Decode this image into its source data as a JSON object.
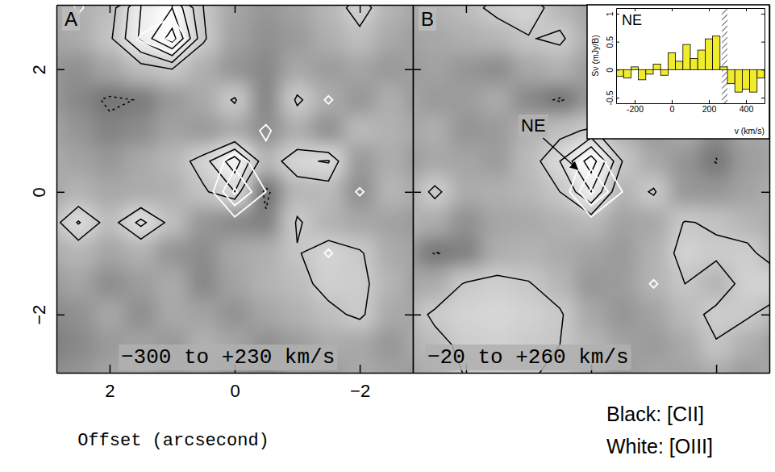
{
  "chart_data": {
    "type": "contour",
    "x_label": "Offset (arcsecond)",
    "legend": "bottom-right",
    "xlim": [
      2.85,
      -2.85
    ],
    "ylim": [
      -2.95,
      3.05
    ],
    "xticks": [
      2,
      0,
      {
        "value": -2,
        "label": "−2"
      }
    ],
    "yticks": [
      2,
      0,
      {
        "value": -2,
        "label": "−2"
      }
    ],
    "x": [
      3,
      2.5,
      2,
      1.5,
      1,
      0.5,
      0,
      -0.5,
      -1,
      -1.5,
      -2,
      -2.5,
      -3
    ],
    "y": [
      3,
      2.5,
      2,
      1.5,
      1,
      0.5,
      0,
      -0.5,
      -1,
      -1.5,
      -2,
      -2.5,
      -3
    ],
    "color_range": [
      -3,
      5
    ],
    "series": [
      {
        "name": "Black: [CII]",
        "color": "#000000",
        "levels": [
          -3,
          -2,
          2,
          3,
          4,
          5,
          6
        ]
      },
      {
        "name": "White: [OIII]",
        "color": "#ffffff",
        "levels": [
          2,
          3,
          4
        ]
      }
    ],
    "panels": [
      {
        "title": "A",
        "annotation": "−300 to +230 km/s",
        "maps": [
          [
            [
              0.5,
              0.8,
              1.5,
              4.0,
              5.0,
              2.0,
              0.3,
              -0.5,
              0.2,
              1.2,
              2.6,
              1.0,
              0.2
            ],
            [
              0.2,
              0.6,
              1.8,
              4.2,
              6.5,
              2.2,
              0.1,
              -0.8,
              -0.3,
              0.8,
              1.6,
              0.5,
              -0.2
            ],
            [
              -0.5,
              -0.8,
              0.3,
              1.5,
              2.0,
              0.8,
              -0.6,
              -1.2,
              0.4,
              -0.2,
              0.3,
              -0.4,
              0.1
            ],
            [
              -0.3,
              -1.2,
              -2.3,
              -1.9,
              -0.4,
              0.5,
              2.2,
              -1.4,
              2.3,
              0.6,
              -0.5,
              0.8,
              -0.6
            ],
            [
              0.4,
              -0.6,
              -1.5,
              -1.0,
              0.2,
              -0.3,
              0.5,
              -0.9,
              0.7,
              -0.8,
              1.4,
              0.9,
              0.3
            ],
            [
              0.6,
              0.2,
              -0.4,
              0.5,
              1.2,
              2.6,
              4.6,
              1.2,
              2.8,
              3.1,
              -0.3,
              0.7,
              -0.4
            ],
            [
              0.3,
              1.0,
              0.4,
              0.6,
              0.8,
              1.8,
              3.0,
              -2.5,
              1.2,
              1.4,
              -0.9,
              1.2,
              0.5
            ],
            [
              1.2,
              3.1,
              1.5,
              3.3,
              1.6,
              -0.5,
              -1.2,
              -1.6,
              2.2,
              1.0,
              0.4,
              0.2,
              -0.3
            ],
            [
              0.5,
              1.2,
              0.3,
              0.9,
              -0.6,
              -1.0,
              0.4,
              0.8,
              1.9,
              2.7,
              2.2,
              0.6,
              0.1
            ],
            [
              -0.4,
              0.3,
              -1.0,
              -0.2,
              0.6,
              -1.3,
              0.2,
              1.0,
              1.5,
              2.5,
              2.4,
              1.1,
              -0.2
            ],
            [
              -1.3,
              -0.8,
              0.4,
              -0.9,
              0.5,
              0.2,
              -0.7,
              0.3,
              0.9,
              1.6,
              2.3,
              0.5,
              0.3
            ],
            [
              -1.8,
              -1.2,
              -0.3,
              0.2,
              -0.4,
              0.9,
              0.3,
              -0.8,
              -0.2,
              0.6,
              0.4,
              -0.5,
              0.7
            ],
            [
              -1.0,
              -0.6,
              0.2,
              0.6,
              -0.2,
              0.3,
              -0.5,
              -0.9,
              0.1,
              -0.3,
              0.5,
              0.2,
              -0.4
            ]
          ],
          [
            [
              0,
              2.3,
              0.5,
              0.8,
              1.5,
              0.3,
              0,
              0,
              0,
              0,
              0,
              0,
              0
            ],
            [
              0,
              0.6,
              0.3,
              2.2,
              3.2,
              0.5,
              0,
              0,
              0,
              0,
              0,
              0,
              0
            ],
            [
              0,
              0,
              0,
              0,
              0.5,
              0,
              0,
              0,
              0,
              0,
              0,
              0,
              0
            ],
            [
              0,
              0,
              0,
              0,
              0,
              0,
              0,
              0.3,
              0,
              2.3,
              0,
              0,
              0
            ],
            [
              0,
              0,
              0,
              0,
              0,
              0,
              0.4,
              2.4,
              0,
              0,
              0,
              0,
              0
            ],
            [
              0,
              0,
              0,
              0,
              0,
              0.8,
              2.6,
              1.2,
              0,
              0,
              0,
              0,
              0
            ],
            [
              0,
              0,
              0,
              0,
              0,
              1.0,
              4.2,
              2.0,
              0,
              0,
              2.3,
              0,
              0
            ],
            [
              0,
              0,
              0,
              0,
              0,
              0.3,
              1.5,
              0.6,
              0,
              0,
              0,
              0,
              0
            ],
            [
              0,
              0,
              0,
              0,
              0,
              0,
              0,
              0,
              0,
              2.3,
              0,
              0,
              0
            ],
            [
              0,
              0,
              0,
              0,
              0,
              0,
              0,
              0,
              0,
              0,
              0,
              0,
              0
            ],
            [
              0,
              0,
              0,
              0,
              0,
              0,
              0,
              0,
              0,
              0,
              0,
              0,
              0
            ],
            [
              0,
              0,
              0,
              0,
              0,
              0,
              0,
              0,
              0,
              0,
              0,
              0,
              0
            ],
            [
              0,
              0,
              0,
              0,
              0,
              0,
              0,
              0,
              0,
              0,
              0,
              0,
              0
            ]
          ]
        ]
      },
      {
        "title": "B",
        "annotation": "−20 to +260 km/s",
        "tick_labels": false,
        "labels": [
          {
            "text": "NE",
            "x": 0.15,
            "y": 0.3
          }
        ],
        "maps": [
          [
            [
              0.3,
              1.0,
              1.5,
              2.4,
              2.8,
              1.2,
              0.2,
              0.5,
              -0.3,
              2.2,
              1.0,
              0.4,
              -0.2
            ],
            [
              0.1,
              0.4,
              0.8,
              1.2,
              1.9,
              2.3,
              0.6,
              -0.4,
              0.3,
              2.5,
              0.8,
              -0.3,
              0.2
            ],
            [
              -0.4,
              0.2,
              -0.5,
              -1.0,
              0.4,
              0.9,
              -0.2,
              -1.1,
              -0.6,
              1.1,
              0.2,
              -0.8,
              0.4
            ],
            [
              0.5,
              -0.3,
              -0.2,
              0.6,
              -1.2,
              -2.2,
              -0.5,
              0.3,
              -1.0,
              -0.3,
              0.5,
              0.1,
              -0.5
            ],
            [
              0.2,
              0.8,
              -0.6,
              -0.3,
              0.9,
              1.6,
              2.2,
              0.8,
              -0.4,
              0.6,
              -1.0,
              0.3,
              0.6
            ],
            [
              -0.3,
              0.4,
              0.3,
              -0.2,
              1.4,
              3.0,
              5.6,
              2.0,
              0.5,
              -0.6,
              -2.1,
              -0.2,
              0.3
            ],
            [
              0.4,
              2.4,
              0.6,
              0.8,
              1.2,
              2.0,
              4.0,
              1.0,
              2.2,
              -0.4,
              -0.5,
              0.2,
              0.8
            ],
            [
              1.0,
              0.6,
              -0.8,
              0.3,
              0.5,
              0.9,
              1.3,
              0.2,
              0.4,
              2.1,
              1.8,
              1.2,
              0.5
            ],
            [
              -0.2,
              -2.1,
              -1.6,
              0.7,
              1.0,
              0.6,
              0.2,
              -0.3,
              0.9,
              2.6,
              2.3,
              2.4,
              1.0
            ],
            [
              0.3,
              0.6,
              2.2,
              2.5,
              2.1,
              1.2,
              -0.5,
              -0.2,
              1.0,
              2.0,
              1.1,
              2.6,
              2.8
            ],
            [
              1.0,
              2.3,
              2.7,
              2.9,
              2.6,
              2.2,
              0.4,
              -0.6,
              0.2,
              1.4,
              2.4,
              2.2,
              1.2
            ],
            [
              0.6,
              1.5,
              2.4,
              2.6,
              2.3,
              2.0,
              1.2,
              0.2,
              -0.3,
              0.5,
              1.9,
              0.8,
              -0.1
            ],
            [
              0.2,
              0.8,
              2.1,
              2.3,
              2.2,
              1.5,
              0.6,
              -0.4,
              0.3,
              0.2,
              0.6,
              -0.2,
              0.4
            ]
          ],
          [
            [
              0,
              0,
              0,
              0,
              0,
              0,
              0,
              0,
              0,
              0,
              0,
              0,
              0
            ],
            [
              0,
              0,
              0,
              0,
              0,
              0,
              0,
              0,
              0,
              0,
              0,
              0,
              0
            ],
            [
              0,
              0,
              0,
              0,
              0,
              0,
              0,
              0,
              0,
              1.2,
              0,
              0,
              0
            ],
            [
              0,
              0,
              0,
              0,
              0,
              0,
              0,
              0,
              0,
              2.4,
              0,
              0,
              0
            ],
            [
              0,
              0,
              0,
              0,
              0,
              0,
              0,
              0,
              0,
              0,
              0,
              0,
              0
            ],
            [
              0,
              0,
              0,
              0,
              0,
              0.8,
              2.6,
              1.2,
              0,
              0,
              0,
              0,
              0
            ],
            [
              0,
              0,
              0,
              0,
              0,
              1.0,
              4.2,
              2.0,
              0,
              0,
              0,
              0,
              0
            ],
            [
              0,
              0,
              0,
              0,
              0,
              0.3,
              1.5,
              0.6,
              0,
              0,
              0,
              0,
              0
            ],
            [
              0,
              0,
              0,
              0,
              0,
              0,
              0,
              0,
              0,
              0,
              0,
              0,
              0
            ],
            [
              0,
              0,
              0,
              0,
              0,
              0,
              0,
              0,
              2.3,
              0,
              0,
              0,
              0
            ],
            [
              0,
              0,
              0,
              0,
              0,
              0,
              0,
              0,
              0,
              0,
              0,
              0,
              0
            ],
            [
              0,
              0,
              0,
              0,
              0,
              0,
              0,
              0,
              0,
              0,
              0,
              0,
              0
            ],
            [
              0,
              0,
              0,
              0,
              0,
              0,
              0,
              0,
              0,
              0,
              0,
              0,
              0
            ]
          ]
        ]
      }
    ],
    "inset": {
      "type": "bar",
      "title": "NE",
      "x_label": "v (km/s)",
      "y_label": "Sν (mJy/B)",
      "color": "#f0ec2c",
      "bins": [
        -300,
        -260,
        -220,
        -180,
        -140,
        -100,
        -60,
        -20,
        20,
        60,
        100,
        140,
        180,
        220,
        260,
        300,
        340,
        380,
        420,
        460,
        500
      ],
      "values": [
        -0.12,
        -0.15,
        0.05,
        -0.18,
        -0.08,
        0.1,
        -0.1,
        0.3,
        0.15,
        0.45,
        0.2,
        0.35,
        0.55,
        0.6,
        0.05,
        -0.25,
        -0.4,
        -0.35,
        -0.4,
        -0.15
      ],
      "xlim": [
        -300,
        500
      ],
      "xticks": [
        -200,
        0,
        200,
        400
      ],
      "ylim": [
        -0.6,
        1.1
      ],
      "yticks": [
        -0.5,
        0,
        0.5,
        1
      ],
      "hatched": [
        270,
        300
      ]
    }
  }
}
